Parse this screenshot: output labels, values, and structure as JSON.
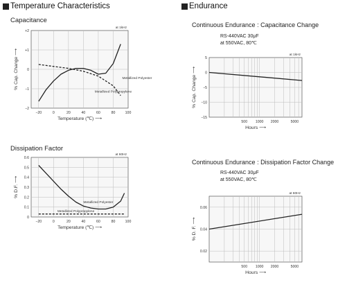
{
  "sections": {
    "temperature": "Temperature Characteristics",
    "endurance": "Endurance"
  },
  "chart_data": [
    {
      "type": "line",
      "title": "Capacitance",
      "note": "at 1kHz",
      "xlabel": "Temperature (℃)",
      "ylabel": "% Cap. Change",
      "xlim": [
        -30,
        100
      ],
      "ylim": [
        -2,
        2
      ],
      "x_ticks": [
        "−20",
        "0",
        "20",
        "40",
        "60",
        "80",
        "100"
      ],
      "y_ticks": [
        "+2",
        "+1",
        "0",
        "−1",
        "−2"
      ],
      "grid": true,
      "series": [
        {
          "name": "Metallized Polyester",
          "style": "solid",
          "x": [
            -20,
            -10,
            0,
            10,
            20,
            30,
            40,
            50,
            60,
            70,
            80,
            90
          ],
          "y": [
            -1.65,
            -1.05,
            -0.6,
            -0.25,
            -0.05,
            0.05,
            0.05,
            -0.05,
            -0.25,
            -0.2,
            0.3,
            1.3
          ]
        },
        {
          "name": "Metallized Polypropylene",
          "style": "dashed",
          "x": [
            -20,
            0,
            20,
            40,
            60,
            80,
            90
          ],
          "y": [
            0.25,
            0.15,
            0.05,
            -0.1,
            -0.35,
            -0.85,
            -1.35
          ]
        }
      ]
    },
    {
      "type": "line",
      "title": "Dissipation Factor",
      "note": "at 60Hz",
      "xlabel": "Temperature (℃)",
      "ylabel": "% D.F.",
      "xlim": [
        -30,
        100
      ],
      "ylim": [
        0,
        0.6
      ],
      "x_ticks": [
        "−20",
        "0",
        "20",
        "40",
        "60",
        "80",
        "100"
      ],
      "y_ticks": [
        "0.6",
        "0.5",
        "0.4",
        "0.3",
        "0.2",
        "0.1",
        "0"
      ],
      "grid": true,
      "series": [
        {
          "name": "Metallized Polyester",
          "style": "solid",
          "x": [
            -20,
            -10,
            0,
            10,
            20,
            30,
            40,
            50,
            60,
            70,
            80,
            90,
            95
          ],
          "y": [
            0.52,
            0.44,
            0.36,
            0.28,
            0.21,
            0.15,
            0.11,
            0.09,
            0.08,
            0.08,
            0.1,
            0.16,
            0.24
          ]
        },
        {
          "name": "Metallized Polypropylene",
          "style": "dashed",
          "x": [
            -20,
            95
          ],
          "y": [
            0.03,
            0.03
          ]
        }
      ]
    },
    {
      "type": "line",
      "title": "Continuous Endurance : Capacitance Change",
      "condition": [
        "RS-440VAC 30μF",
        "at 550VAC, 80℃"
      ],
      "note": "at 1kHz",
      "xlabel": "Hours",
      "ylabel": "% Cap. Change",
      "x_scale": "log",
      "xlim": [
        100,
        7000
      ],
      "ylim": [
        -15,
        5
      ],
      "x_ticks": [
        "500",
        "1000",
        "2000",
        "5000"
      ],
      "y_ticks": [
        "5",
        "0",
        "−5",
        "−10",
        "−15"
      ],
      "grid": true,
      "series": [
        {
          "style": "solid",
          "x": [
            100,
            7000
          ],
          "y": [
            0,
            -2.7
          ]
        }
      ]
    },
    {
      "type": "line",
      "title": "Continuous Endurance : Dissipation Factor Change",
      "condition": [
        "RS-440VAC 30μF",
        "at 550VAC, 80℃"
      ],
      "note": "at 60Hz",
      "xlabel": "Hours",
      "ylabel": "% D. F.",
      "x_scale": "log",
      "xlim": [
        100,
        7000
      ],
      "ylim": [
        0.01,
        0.07
      ],
      "x_ticks": [
        "500",
        "1000",
        "2000",
        "5000"
      ],
      "y_ticks": [
        "0.06",
        "0.04",
        "0.02"
      ],
      "grid": true,
      "series": [
        {
          "style": "solid",
          "x": [
            100,
            7000
          ],
          "y": [
            0.04,
            0.0535
          ]
        }
      ]
    }
  ]
}
